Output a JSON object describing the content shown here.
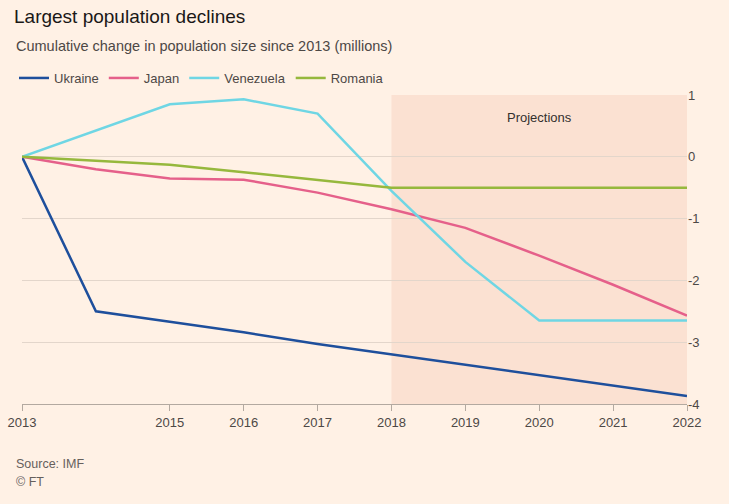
{
  "chart_data": {
    "type": "line",
    "title": "Largest population declines",
    "subtitle": "Cumulative change in population size since 2013 (millions)",
    "x": [
      2013,
      2014,
      2015,
      2016,
      2017,
      2018,
      2019,
      2020,
      2021,
      2022
    ],
    "series": [
      {
        "name": "Ukraine",
        "color": "#1e4f9c",
        "values": [
          0,
          -2.5,
          -2.67,
          -2.84,
          -3.03,
          -3.2,
          -3.37,
          -3.53,
          -3.7,
          -3.87
        ]
      },
      {
        "name": "Japan",
        "color": "#e5608a",
        "values": [
          0,
          -0.2,
          -0.35,
          -0.37,
          -0.58,
          -0.85,
          -1.15,
          -1.6,
          -2.07,
          -2.57
        ]
      },
      {
        "name": "Venezuela",
        "color": "#6fd6e4",
        "values": [
          0,
          0.42,
          0.85,
          0.93,
          0.7,
          -0.55,
          -1.7,
          -2.65,
          -2.65,
          -2.65
        ]
      },
      {
        "name": "Romania",
        "color": "#96b83d",
        "values": [
          0,
          -0.07,
          -0.13,
          -0.25,
          -0.38,
          -0.5,
          -0.5,
          -0.5,
          -0.5,
          -0.5
        ]
      }
    ],
    "xlim": [
      2013,
      2022
    ],
    "xticks": [
      2013,
      2015,
      2016,
      2017,
      2018,
      2019,
      2020,
      2021,
      2022
    ],
    "ylim": [
      -4,
      1
    ],
    "yticks": [
      -4,
      -3,
      -2,
      -1,
      0,
      1
    ],
    "grid": true,
    "legend": "top-left",
    "annotations": [
      {
        "text": "Projections",
        "x_start": 2018,
        "x_end": 2022
      }
    ],
    "source": "Source: IMF",
    "credit": "© FT"
  }
}
